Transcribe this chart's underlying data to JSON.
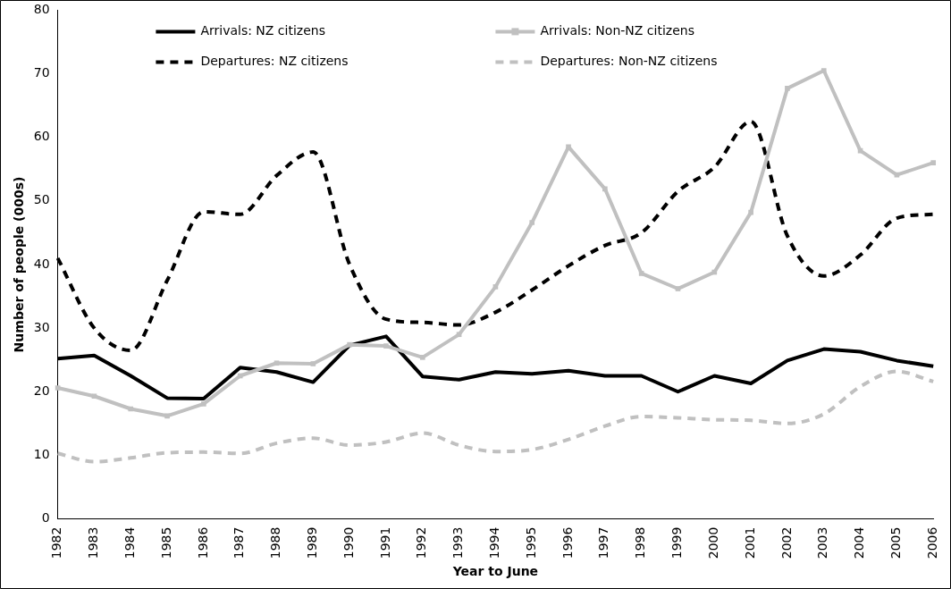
{
  "chart_data": {
    "type": "line",
    "xlabel": "Year to June",
    "ylabel": "Number of people (000s)",
    "categories": [
      "1982",
      "1983",
      "1984",
      "1985",
      "1986",
      "1987",
      "1988",
      "1989",
      "1990",
      "1991",
      "1992",
      "1993",
      "1994",
      "1995",
      "1996",
      "1997",
      "1998",
      "1999",
      "2000",
      "2001",
      "2002",
      "2003",
      "2004",
      "2005",
      "2006"
    ],
    "ylim": [
      0,
      80
    ],
    "yticks": [
      0,
      10,
      20,
      30,
      40,
      50,
      60,
      70,
      80
    ],
    "grid": false,
    "legend": "top",
    "series": [
      {
        "name": "Arrivals: NZ citizens",
        "color": "#000000",
        "line_style": "solid",
        "marker": "none",
        "values": [
          25.2,
          25.7,
          22.5,
          19.0,
          18.9,
          23.8,
          23.1,
          21.5,
          27.3,
          28.7,
          22.4,
          21.9,
          23.1,
          22.8,
          23.3,
          22.5,
          22.5,
          20.0,
          22.5,
          21.3,
          24.9,
          26.7,
          26.3,
          24.9,
          24.0
        ]
      },
      {
        "name": "Arrivals: Non-NZ citizens",
        "color": "#c0c0c0",
        "line_style": "solid",
        "marker": "square",
        "values": [
          20.6,
          19.3,
          17.3,
          16.2,
          18.1,
          22.5,
          24.5,
          24.4,
          27.4,
          27.2,
          25.4,
          29.0,
          36.5,
          46.6,
          58.5,
          51.9,
          38.6,
          36.2,
          38.8,
          48.2,
          67.7,
          70.5,
          57.9,
          54.1,
          56.0
        ]
      },
      {
        "name": "Departures: NZ citizens",
        "color": "#000000",
        "line_style": "dashed",
        "marker": "none",
        "values": [
          41.0,
          30.0,
          26.5,
          37.5,
          48.3,
          47.9,
          54.0,
          57.7,
          40.0,
          31.4,
          30.9,
          30.5,
          32.5,
          36.0,
          39.8,
          43.0,
          45.0,
          51.5,
          55.3,
          62.5,
          44.5,
          38.2,
          41.5,
          47.3,
          47.9
        ]
      },
      {
        "name": "Departures: Non-NZ citizens",
        "color": "#c0c0c0",
        "line_style": "dashed",
        "marker": "none",
        "values": [
          10.3,
          9.0,
          9.6,
          10.4,
          10.5,
          10.3,
          11.9,
          12.7,
          11.6,
          12.1,
          13.5,
          11.6,
          10.6,
          10.9,
          12.5,
          14.6,
          16.1,
          15.9,
          15.6,
          15.5,
          15.0,
          16.5,
          20.8,
          23.2,
          21.6
        ]
      }
    ]
  }
}
